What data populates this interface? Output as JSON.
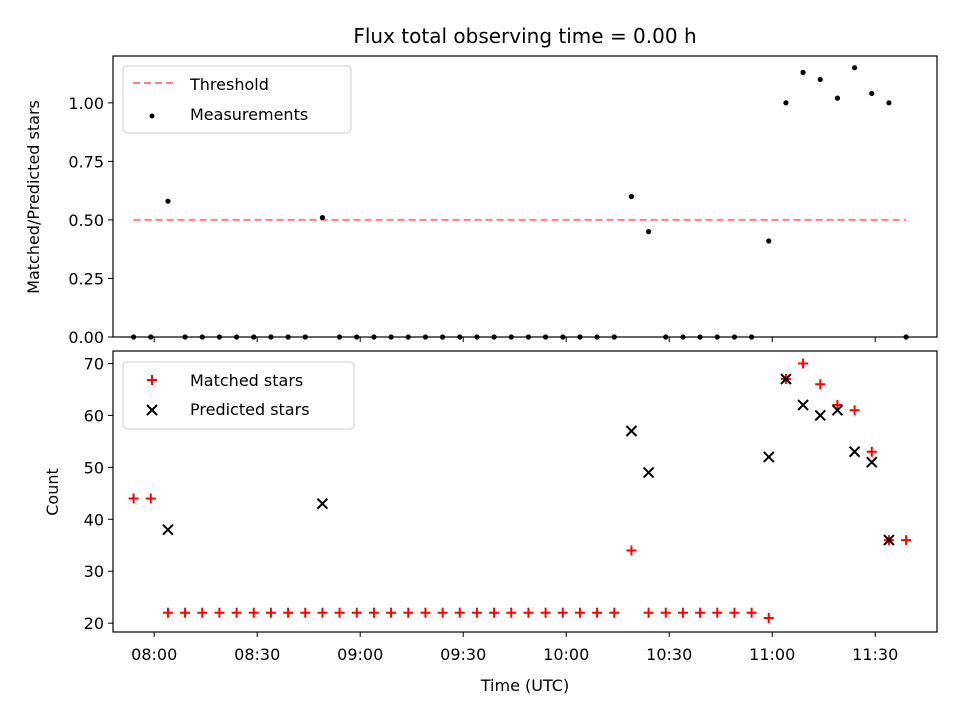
{
  "colors": {
    "threshold": "#ff7f7f",
    "measurement": "#000000",
    "matched": "#ff0000",
    "predicted": "#000000"
  },
  "chart_data": [
    {
      "type": "scatter",
      "title": "Flux total observing time = 0.00 h",
      "ylabel": "Matched/Predicted stars",
      "ylim": [
        0,
        1.2
      ],
      "yticks": [
        "0.00",
        "0.25",
        "0.50",
        "0.75",
        "1.00"
      ],
      "xlim": [
        "07:48",
        "11:48"
      ],
      "legend": {
        "position": "top-left",
        "entries": [
          "Threshold",
          "Measurements"
        ]
      },
      "series": [
        {
          "name": "Threshold",
          "kind": "dashed-line",
          "points": [
            {
              "x": "07:54",
              "y": 0.5
            },
            {
              "x": "11:39",
              "y": 0.5
            }
          ]
        },
        {
          "name": "Measurements",
          "kind": "dots",
          "points": [
            {
              "x": "07:54",
              "y": 0
            },
            {
              "x": "07:59",
              "y": 0
            },
            {
              "x": "08:04",
              "y": 0.58
            },
            {
              "x": "08:09",
              "y": 0
            },
            {
              "x": "08:14",
              "y": 0
            },
            {
              "x": "08:19",
              "y": 0
            },
            {
              "x": "08:24",
              "y": 0
            },
            {
              "x": "08:29",
              "y": 0
            },
            {
              "x": "08:34",
              "y": 0
            },
            {
              "x": "08:39",
              "y": 0
            },
            {
              "x": "08:44",
              "y": 0
            },
            {
              "x": "08:49",
              "y": 0.51
            },
            {
              "x": "08:54",
              "y": 0
            },
            {
              "x": "08:59",
              "y": 0
            },
            {
              "x": "09:04",
              "y": 0
            },
            {
              "x": "09:09",
              "y": 0
            },
            {
              "x": "09:14",
              "y": 0
            },
            {
              "x": "09:19",
              "y": 0
            },
            {
              "x": "09:24",
              "y": 0
            },
            {
              "x": "09:29",
              "y": 0
            },
            {
              "x": "09:34",
              "y": 0
            },
            {
              "x": "09:39",
              "y": 0
            },
            {
              "x": "09:44",
              "y": 0
            },
            {
              "x": "09:49",
              "y": 0
            },
            {
              "x": "09:54",
              "y": 0
            },
            {
              "x": "09:59",
              "y": 0
            },
            {
              "x": "10:04",
              "y": 0
            },
            {
              "x": "10:09",
              "y": 0
            },
            {
              "x": "10:14",
              "y": 0
            },
            {
              "x": "10:19",
              "y": 0.6
            },
            {
              "x": "10:24",
              "y": 0.45
            },
            {
              "x": "10:29",
              "y": 0
            },
            {
              "x": "10:34",
              "y": 0
            },
            {
              "x": "10:39",
              "y": 0
            },
            {
              "x": "10:44",
              "y": 0
            },
            {
              "x": "10:49",
              "y": 0
            },
            {
              "x": "10:54",
              "y": 0
            },
            {
              "x": "10:59",
              "y": 0.41
            },
            {
              "x": "11:04",
              "y": 1.0
            },
            {
              "x": "11:09",
              "y": 1.13
            },
            {
              "x": "11:14",
              "y": 1.1
            },
            {
              "x": "11:19",
              "y": 1.02
            },
            {
              "x": "11:24",
              "y": 1.15
            },
            {
              "x": "11:29",
              "y": 1.04
            },
            {
              "x": "11:34",
              "y": 1.0
            },
            {
              "x": "11:39",
              "y": 0
            }
          ]
        }
      ]
    },
    {
      "type": "scatter",
      "ylabel": "Count",
      "xlabel": "Time (UTC)",
      "ylim": [
        18.3,
        72.4
      ],
      "yticks": [
        "20",
        "30",
        "40",
        "50",
        "60",
        "70"
      ],
      "xlim": [
        "07:48",
        "11:48"
      ],
      "xticks": [
        "08:00",
        "08:30",
        "09:00",
        "09:30",
        "10:00",
        "10:30",
        "11:00",
        "11:30"
      ],
      "legend": {
        "position": "top-left",
        "entries": [
          "Matched stars",
          "Predicted stars"
        ]
      },
      "series": [
        {
          "name": "Matched stars",
          "marker": "plus",
          "points": [
            {
              "x": "07:54",
              "y": 44
            },
            {
              "x": "07:59",
              "y": 44
            },
            {
              "x": "08:04",
              "y": 22
            },
            {
              "x": "08:09",
              "y": 22
            },
            {
              "x": "08:14",
              "y": 22
            },
            {
              "x": "08:19",
              "y": 22
            },
            {
              "x": "08:24",
              "y": 22
            },
            {
              "x": "08:29",
              "y": 22
            },
            {
              "x": "08:34",
              "y": 22
            },
            {
              "x": "08:39",
              "y": 22
            },
            {
              "x": "08:44",
              "y": 22
            },
            {
              "x": "08:49",
              "y": 22
            },
            {
              "x": "08:54",
              "y": 22
            },
            {
              "x": "08:59",
              "y": 22
            },
            {
              "x": "09:04",
              "y": 22
            },
            {
              "x": "09:09",
              "y": 22
            },
            {
              "x": "09:14",
              "y": 22
            },
            {
              "x": "09:19",
              "y": 22
            },
            {
              "x": "09:24",
              "y": 22
            },
            {
              "x": "09:29",
              "y": 22
            },
            {
              "x": "09:34",
              "y": 22
            },
            {
              "x": "09:39",
              "y": 22
            },
            {
              "x": "09:44",
              "y": 22
            },
            {
              "x": "09:49",
              "y": 22
            },
            {
              "x": "09:54",
              "y": 22
            },
            {
              "x": "09:59",
              "y": 22
            },
            {
              "x": "10:04",
              "y": 22
            },
            {
              "x": "10:09",
              "y": 22
            },
            {
              "x": "10:14",
              "y": 22
            },
            {
              "x": "10:19",
              "y": 34
            },
            {
              "x": "10:24",
              "y": 22
            },
            {
              "x": "10:29",
              "y": 22
            },
            {
              "x": "10:34",
              "y": 22
            },
            {
              "x": "10:39",
              "y": 22
            },
            {
              "x": "10:44",
              "y": 22
            },
            {
              "x": "10:49",
              "y": 22
            },
            {
              "x": "10:54",
              "y": 22
            },
            {
              "x": "10:59",
              "y": 21
            },
            {
              "x": "11:04",
              "y": 67
            },
            {
              "x": "11:09",
              "y": 70
            },
            {
              "x": "11:14",
              "y": 66
            },
            {
              "x": "11:19",
              "y": 62
            },
            {
              "x": "11:24",
              "y": 61
            },
            {
              "x": "11:29",
              "y": 53
            },
            {
              "x": "11:34",
              "y": 36
            },
            {
              "x": "11:39",
              "y": 36
            }
          ]
        },
        {
          "name": "Predicted stars",
          "marker": "x",
          "points": [
            {
              "x": "08:04",
              "y": 38
            },
            {
              "x": "08:49",
              "y": 43
            },
            {
              "x": "10:19",
              "y": 57
            },
            {
              "x": "10:24",
              "y": 49
            },
            {
              "x": "10:59",
              "y": 52
            },
            {
              "x": "11:04",
              "y": 67
            },
            {
              "x": "11:09",
              "y": 62
            },
            {
              "x": "11:14",
              "y": 60
            },
            {
              "x": "11:19",
              "y": 61
            },
            {
              "x": "11:24",
              "y": 53
            },
            {
              "x": "11:29",
              "y": 51
            },
            {
              "x": "11:34",
              "y": 36
            }
          ]
        }
      ]
    }
  ]
}
